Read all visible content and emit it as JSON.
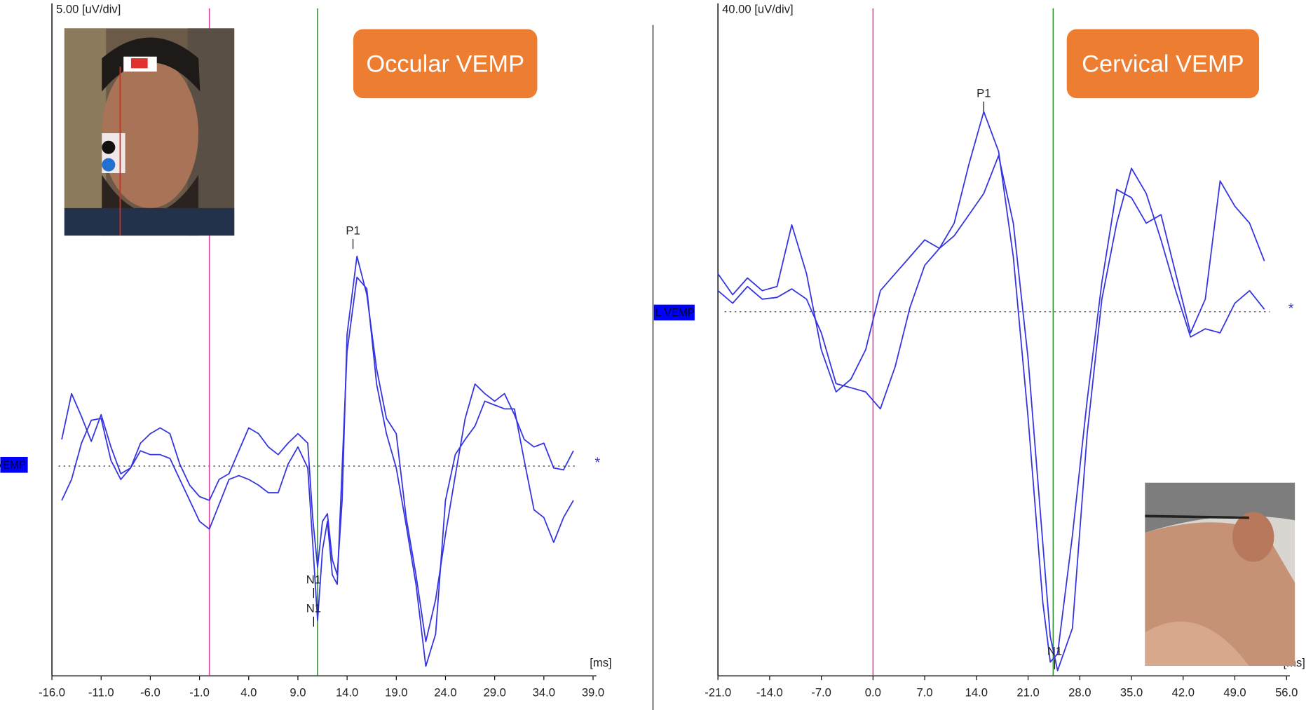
{
  "chart_data": [
    {
      "type": "line",
      "title": "Occular VEMP",
      "channel_label": "VEMP",
      "scale_label": "5.00 [uV/div]",
      "xlabel": "[ms]",
      "marker_symbol": "*",
      "xlim": [
        -16,
        39
      ],
      "ylim": [
        -11,
        24
      ],
      "xticks": [
        {
          "value": -16,
          "label": "-16.0"
        },
        {
          "value": -11,
          "label": "-11.0"
        },
        {
          "value": -6,
          "label": "-6.0"
        },
        {
          "value": -1,
          "label": "-1.0"
        },
        {
          "value": 4,
          "label": "4.0"
        },
        {
          "value": 9,
          "label": "9.0"
        },
        {
          "value": 14,
          "label": "14.0"
        },
        {
          "value": 19,
          "label": "19.0"
        },
        {
          "value": 24,
          "label": "24.0"
        },
        {
          "value": 29,
          "label": "29.0"
        },
        {
          "value": 34,
          "label": "34.0"
        },
        {
          "value": 39,
          "label": "39.0"
        }
      ],
      "x": [
        -15,
        -14,
        -13,
        -12,
        -11,
        -10,
        -9,
        -8,
        -7,
        -6,
        -5,
        -4,
        -3,
        -2,
        -1,
        0,
        1,
        2,
        3,
        4,
        5,
        6,
        7,
        8,
        9,
        10,
        10.5,
        11,
        11.5,
        12,
        12.5,
        13,
        13.5,
        14,
        15,
        16,
        17,
        18,
        19,
        20,
        21,
        22,
        23,
        24,
        25,
        26,
        27,
        28,
        29,
        30,
        31,
        32,
        33,
        34,
        35,
        36,
        37
      ],
      "series": [
        {
          "color": "#3434e0",
          "values": [
            1.4,
            3.8,
            2.6,
            1.3,
            2.7,
            1.0,
            -0.4,
            -0.1,
            1.2,
            1.7,
            2.0,
            1.7,
            0.1,
            -1.0,
            -1.6,
            -1.8,
            -0.7,
            -0.4,
            0.8,
            2.0,
            1.7,
            1.0,
            0.6,
            1.2,
            1.7,
            1.2,
            -2.7,
            -5.3,
            -2.9,
            -2.5,
            -4.9,
            -5.7,
            -1.8,
            6.9,
            11.0,
            9.0,
            5.1,
            2.5,
            1.7,
            -2.7,
            -5.7,
            -9.2,
            -7.0,
            -3.6,
            -0.5,
            2.5,
            4.3,
            3.8,
            3.4,
            3.8,
            2.7,
            1.4,
            1.0,
            1.2,
            -0.1,
            -0.2,
            0.8
          ]
        },
        {
          "color": "#3434e0",
          "values": [
            -1.8,
            -0.7,
            1.2,
            2.4,
            2.5,
            0.3,
            -0.7,
            -0.1,
            0.8,
            0.6,
            0.6,
            0.4,
            -0.7,
            -1.8,
            -2.9,
            -3.3,
            -2.0,
            -0.7,
            -0.5,
            -0.7,
            -1.0,
            -1.4,
            -1.4,
            0.1,
            1.0,
            -0.1,
            -4.0,
            -8.1,
            -4.4,
            -2.9,
            -5.7,
            -6.2,
            -0.1,
            6.0,
            9.9,
            9.3,
            4.3,
            1.7,
            -0.1,
            -3.1,
            -6.2,
            -10.5,
            -8.8,
            -1.8,
            0.6,
            1.4,
            2.1,
            3.4,
            3.2,
            3.0,
            3.0,
            0.3,
            -2.3,
            -2.7,
            -4.0,
            -2.7,
            -1.8
          ]
        }
      ],
      "cursors": [
        {
          "x": 0,
          "color": "#d6409f"
        },
        {
          "x": 11,
          "color": "#2e8b2e"
        }
      ],
      "annotations": [
        {
          "text": "P1",
          "x": 14.6,
          "y": 12.3
        },
        {
          "text": "N1",
          "x": 10.6,
          "y": -6.0
        },
        {
          "text": "N1",
          "x": 10.6,
          "y": -7.5
        }
      ]
    },
    {
      "type": "line",
      "title": "Cervical VEMP",
      "channel_label": "L VEMP",
      "scale_label": "40.00 [uV/div]",
      "xlabel": "[ms]",
      "marker_symbol": "*",
      "xlim": [
        -21,
        56
      ],
      "ylim": [
        -150,
        125
      ],
      "xticks": [
        {
          "value": -21,
          "label": "-21.0"
        },
        {
          "value": -14,
          "label": "-14.0"
        },
        {
          "value": -7,
          "label": "-7.0"
        },
        {
          "value": 0,
          "label": "0.0"
        },
        {
          "value": 7,
          "label": "7.0"
        },
        {
          "value": 14,
          "label": "14.0"
        },
        {
          "value": 21,
          "label": "21.0"
        },
        {
          "value": 28,
          "label": "28.0"
        },
        {
          "value": 35,
          "label": "35.0"
        },
        {
          "value": 42,
          "label": "42.0"
        },
        {
          "value": 49,
          "label": "49.0"
        },
        {
          "value": 56,
          "label": "56.0"
        }
      ],
      "x": [
        -21,
        -19,
        -17,
        -15,
        -13,
        -11,
        -9,
        -7,
        -5,
        -3,
        -1,
        1,
        3,
        5,
        7,
        9,
        11,
        13,
        15,
        17,
        19,
        21,
        23,
        24,
        25,
        27,
        29,
        31,
        33,
        35,
        37,
        39,
        41,
        43,
        45,
        47,
        49,
        51,
        53
      ],
      "series": [
        {
          "color": "#3434e0",
          "values": [
            15.7,
            7.0,
            13.9,
            8.7,
            10.4,
            35.8,
            15.7,
            -15.7,
            -33.0,
            -27.8,
            -15.7,
            8.7,
            15.7,
            22.6,
            29.6,
            26.1,
            36.5,
            60.9,
            82.4,
            66.1,
            22.6,
            -43.5,
            -120,
            -144.3,
            -140.9,
            -92.2,
            -36.5,
            12.2,
            50.4,
            47.0,
            36.5,
            40.0,
            15.7,
            -8.7,
            5.2,
            53.9,
            43.5,
            36.5,
            20.9
          ]
        },
        {
          "color": "#3434e0",
          "values": [
            8.7,
            3.5,
            10.4,
            5.2,
            5.9,
            9.4,
            5.2,
            -8.7,
            -29.6,
            -31.3,
            -33.0,
            -40.0,
            -22.6,
            1.7,
            19.1,
            26.1,
            31.3,
            40.0,
            48.7,
            64.3,
            36.5,
            -19.1,
            -95.7,
            -133.9,
            -147.8,
            -130.4,
            -50.4,
            5.2,
            36.5,
            59.1,
            48.7,
            29.6,
            8.7,
            -10.4,
            -7.0,
            -8.7,
            3.5,
            8.7,
            1.0
          ]
        }
      ],
      "cursors": [
        {
          "x": 0,
          "color": "#d6409f"
        },
        {
          "x": 24.4,
          "color": "#2e8b2e"
        }
      ],
      "annotations": [
        {
          "text": "P1",
          "x": 15.0,
          "y": 89.7
        },
        {
          "text": "N1",
          "x": 24.6,
          "y": -140.1
        }
      ]
    }
  ]
}
